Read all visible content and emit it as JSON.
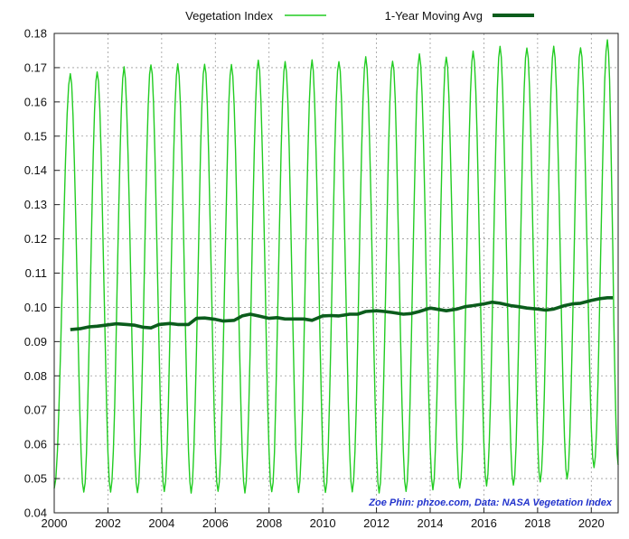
{
  "chart_data": {
    "type": "line",
    "title": "",
    "xlabel": "",
    "ylabel": "",
    "xlim": [
      2000,
      2021
    ],
    "ylim": [
      0.04,
      0.18
    ],
    "x_ticks": [
      "2000",
      "2002",
      "2004",
      "2006",
      "2008",
      "2010",
      "2012",
      "2014",
      "2016",
      "2018",
      "2020"
    ],
    "y_ticks": [
      "0.04",
      "0.05",
      "0.06",
      "0.07",
      "0.08",
      "0.09",
      "0.10",
      "0.11",
      "0.12",
      "0.13",
      "0.14",
      "0.15",
      "0.16",
      "0.17",
      "0.18"
    ],
    "grid": true,
    "legend_position": "top",
    "series": [
      {
        "name": "Vegetation Index",
        "color": "#22cc22",
        "start_value": 0.047,
        "annual_peak_time": 0.6,
        "annual_peaks": [
          {
            "year": 2000,
            "value": 0.168
          },
          {
            "year": 2001,
            "value": 0.169
          },
          {
            "year": 2002,
            "value": 0.17
          },
          {
            "year": 2003,
            "value": 0.171
          },
          {
            "year": 2004,
            "value": 0.171
          },
          {
            "year": 2005,
            "value": 0.171
          },
          {
            "year": 2006,
            "value": 0.171
          },
          {
            "year": 2007,
            "value": 0.172
          },
          {
            "year": 2008,
            "value": 0.172
          },
          {
            "year": 2009,
            "value": 0.172
          },
          {
            "year": 2010,
            "value": 0.172
          },
          {
            "year": 2011,
            "value": 0.173
          },
          {
            "year": 2012,
            "value": 0.172
          },
          {
            "year": 2013,
            "value": 0.174
          },
          {
            "year": 2014,
            "value": 0.173
          },
          {
            "year": 2015,
            "value": 0.175
          },
          {
            "year": 2016,
            "value": 0.176
          },
          {
            "year": 2017,
            "value": 0.176
          },
          {
            "year": 2018,
            "value": 0.176
          },
          {
            "year": 2019,
            "value": 0.176
          },
          {
            "year": 2020,
            "value": 0.178
          }
        ],
        "annual_troughs": [
          {
            "year": 2001,
            "value": 0.046
          },
          {
            "year": 2002,
            "value": 0.046
          },
          {
            "year": 2003,
            "value": 0.046
          },
          {
            "year": 2004,
            "value": 0.046
          },
          {
            "year": 2005,
            "value": 0.046
          },
          {
            "year": 2006,
            "value": 0.046
          },
          {
            "year": 2007,
            "value": 0.046
          },
          {
            "year": 2008,
            "value": 0.046
          },
          {
            "year": 2009,
            "value": 0.046
          },
          {
            "year": 2010,
            "value": 0.046
          },
          {
            "year": 2011,
            "value": 0.046
          },
          {
            "year": 2012,
            "value": 0.046
          },
          {
            "year": 2013,
            "value": 0.046
          },
          {
            "year": 2014,
            "value": 0.047
          },
          {
            "year": 2015,
            "value": 0.047
          },
          {
            "year": 2016,
            "value": 0.048
          },
          {
            "year": 2017,
            "value": 0.048
          },
          {
            "year": 2018,
            "value": 0.049
          },
          {
            "year": 2019,
            "value": 0.05
          },
          {
            "year": 2020,
            "value": 0.053
          }
        ],
        "end_value": 0.054
      },
      {
        "name": "1-Year Moving Avg",
        "color": "#0b5c1c",
        "x": [
          2000.6,
          2001.0,
          2001.3,
          2001.6,
          2001.9,
          2002.3,
          2002.7,
          2003.0,
          2003.3,
          2003.6,
          2003.9,
          2004.3,
          2004.6,
          2005.0,
          2005.3,
          2005.6,
          2006.0,
          2006.3,
          2006.7,
          2007.0,
          2007.3,
          2007.6,
          2008.0,
          2008.3,
          2008.6,
          2009.0,
          2009.3,
          2009.6,
          2010.0,
          2010.3,
          2010.6,
          2011.0,
          2011.3,
          2011.6,
          2012.0,
          2012.3,
          2012.6,
          2013.0,
          2013.3,
          2013.6,
          2014.0,
          2014.3,
          2014.6,
          2015.0,
          2015.3,
          2015.6,
          2016.0,
          2016.3,
          2016.6,
          2017.0,
          2017.3,
          2017.6,
          2018.0,
          2018.3,
          2018.6,
          2019.0,
          2019.3,
          2019.6,
          2020.0,
          2020.3,
          2020.6,
          2020.8
        ],
        "y": [
          0.0935,
          0.0938,
          0.0943,
          0.0945,
          0.0948,
          0.0952,
          0.095,
          0.0948,
          0.0942,
          0.094,
          0.095,
          0.0953,
          0.095,
          0.095,
          0.0968,
          0.0969,
          0.0965,
          0.096,
          0.0962,
          0.0975,
          0.098,
          0.0975,
          0.0968,
          0.097,
          0.0966,
          0.0966,
          0.0966,
          0.0962,
          0.0975,
          0.0976,
          0.0975,
          0.098,
          0.098,
          0.0988,
          0.099,
          0.0988,
          0.0985,
          0.098,
          0.0982,
          0.0988,
          0.0998,
          0.0994,
          0.099,
          0.0995,
          0.1002,
          0.1005,
          0.101,
          0.1015,
          0.1012,
          0.1005,
          0.1002,
          0.0998,
          0.0995,
          0.0992,
          0.0995,
          0.1005,
          0.101,
          0.1012,
          0.102,
          0.1025,
          0.1028,
          0.1028
        ]
      }
    ],
    "annotation": "Zoe Phin: phzoe.com, Data: NASA Vegetation Index"
  },
  "colors": {
    "credit": "#2233cc",
    "grid": "#9a9a9a",
    "axis": "#222222"
  }
}
